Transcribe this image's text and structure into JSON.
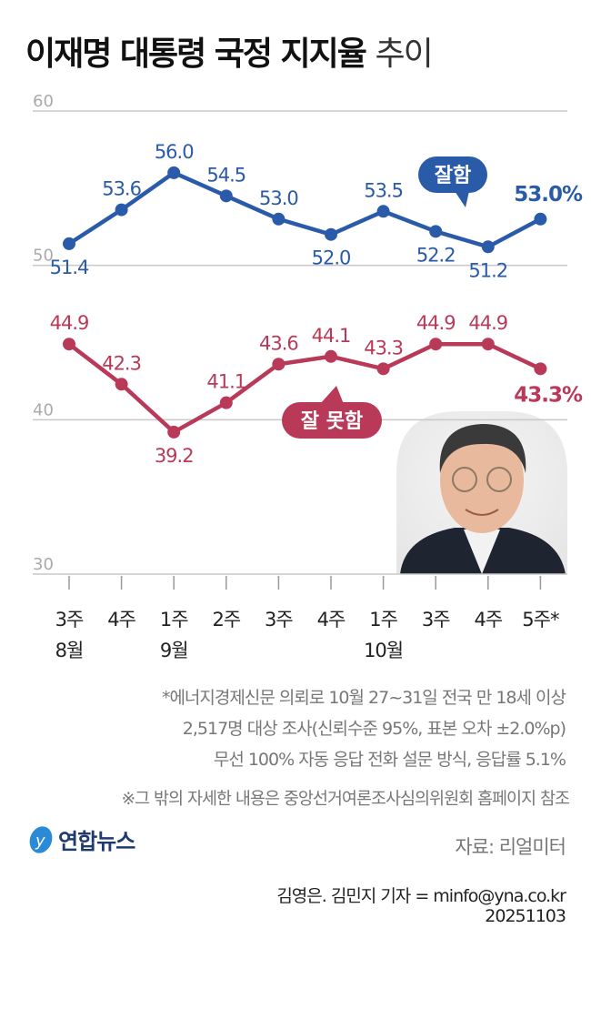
{
  "title": {
    "main": "이재명 대통령 국정 지지율",
    "suffix": "추이"
  },
  "chart_data": {
    "type": "line",
    "ylim": [
      30,
      60
    ],
    "yticks": [
      60,
      50,
      40,
      30
    ],
    "grid": true,
    "categories": [
      {
        "week": "3주",
        "month": "8월"
      },
      {
        "week": "4주",
        "month": ""
      },
      {
        "week": "1주",
        "month": "9월"
      },
      {
        "week": "2주",
        "month": ""
      },
      {
        "week": "3주",
        "month": ""
      },
      {
        "week": "4주",
        "month": ""
      },
      {
        "week": "1주",
        "month": "10월"
      },
      {
        "week": "3주",
        "month": ""
      },
      {
        "week": "4주",
        "month": ""
      },
      {
        "week": "5주*",
        "month": ""
      }
    ],
    "series": [
      {
        "name": "잘함",
        "color": "#2a5ba8",
        "values": [
          51.4,
          53.6,
          56.0,
          54.5,
          53.0,
          52.0,
          53.5,
          52.2,
          51.2,
          53.0
        ],
        "last_label": "53.0%"
      },
      {
        "name": "잘 못함",
        "color": "#b83a58",
        "values": [
          44.9,
          42.3,
          39.2,
          41.1,
          43.6,
          44.1,
          43.3,
          44.9,
          44.9,
          43.3
        ],
        "last_label": "43.3%"
      }
    ]
  },
  "notes": [
    "*에너지경제신문 의뢰로 10월 27~31일 전국 만 18세 이상",
    "2,517명 대상 조사(신뢰수준 95%, 표본 오차 ±2.0%p)",
    "무선 100% 자동 응답 전화 설문 방식, 응답률 5.1%"
  ],
  "reference": "※그 밖의 자세한 내용은 중앙선거여론조사심의위원회 홈페이지 참조",
  "logo": "연합뉴스",
  "source": "자료: 리얼미터",
  "credit": "김영은. 김민지 기자 = minfo@yna.co.kr",
  "date": "20251103"
}
